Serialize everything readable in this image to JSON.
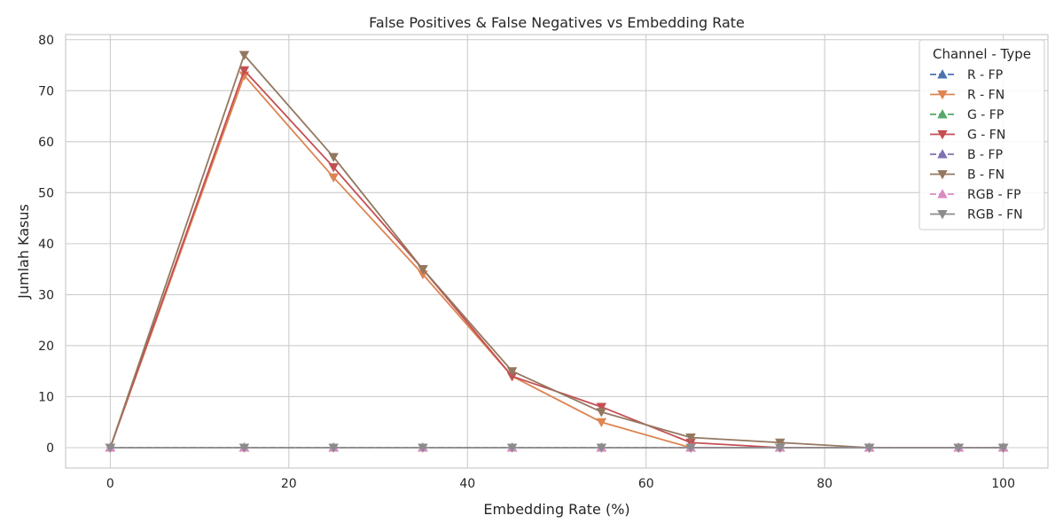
{
  "chart_data": {
    "type": "line",
    "title": "False Positives & False Negatives vs Embedding Rate",
    "xlabel": "Embedding Rate (%)",
    "ylabel": "Jumlah Kasus",
    "xlim": [
      -5,
      105
    ],
    "ylim": [
      -4,
      81
    ],
    "xticks": [
      0,
      20,
      40,
      60,
      80,
      100
    ],
    "yticks": [
      0,
      10,
      20,
      30,
      40,
      50,
      60,
      70,
      80
    ],
    "grid": true,
    "legend_title": "Channel - Type",
    "legend_position": "top-right",
    "x": [
      0,
      15,
      25,
      35,
      45,
      55,
      65,
      75,
      85,
      95,
      100
    ],
    "series": [
      {
        "name": "R - FP",
        "color": "#4c72b0",
        "style": "dashed",
        "marker": "triangle-up",
        "values": [
          0,
          0,
          0,
          0,
          0,
          0,
          0,
          0,
          0,
          0,
          0
        ]
      },
      {
        "name": "R - FN",
        "color": "#dd8452",
        "style": "solid",
        "marker": "triangle-down",
        "values": [
          0,
          73,
          53,
          34,
          14,
          5,
          0,
          0,
          0,
          0,
          0
        ]
      },
      {
        "name": "G - FP",
        "color": "#55a868",
        "style": "dashed",
        "marker": "triangle-up",
        "values": [
          0,
          0,
          0,
          0,
          0,
          0,
          0,
          0,
          0,
          0,
          0
        ]
      },
      {
        "name": "G - FN",
        "color": "#c44e52",
        "style": "solid",
        "marker": "triangle-down",
        "values": [
          0,
          74,
          55,
          35,
          14,
          8,
          1,
          0,
          0,
          0,
          0
        ]
      },
      {
        "name": "B - FP",
        "color": "#8172b3",
        "style": "dashed",
        "marker": "triangle-up",
        "values": [
          0,
          0,
          0,
          0,
          0,
          0,
          0,
          0,
          0,
          0,
          0
        ]
      },
      {
        "name": "B - FN",
        "color": "#937860",
        "style": "solid",
        "marker": "triangle-down",
        "values": [
          0,
          77,
          57,
          35,
          15,
          7,
          2,
          1,
          0,
          0,
          0
        ]
      },
      {
        "name": "RGB - FP",
        "color": "#da8bc3",
        "style": "dashed",
        "marker": "triangle-up",
        "values": [
          0,
          0,
          0,
          0,
          0,
          0,
          0,
          0,
          0,
          0,
          0
        ]
      },
      {
        "name": "RGB - FN",
        "color": "#8c8c8c",
        "style": "solid",
        "marker": "triangle-down",
        "values": [
          0,
          0,
          0,
          0,
          0,
          0,
          0,
          0,
          0,
          0,
          0
        ]
      }
    ]
  }
}
